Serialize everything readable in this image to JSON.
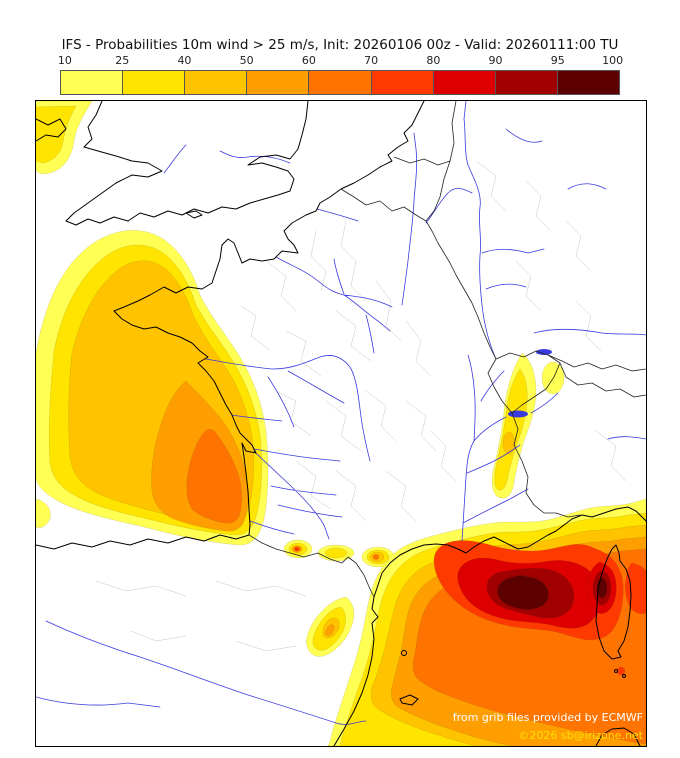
{
  "title": "IFS - Probabilities 10m wind > 25 m/s, Init: 20260106 00z - Valid: 20260111:00 TU",
  "colorbar": {
    "tick_labels": [
      "10",
      "25",
      "40",
      "50",
      "60",
      "70",
      "80",
      "90",
      "95",
      "100"
    ],
    "segment_colors": [
      "#ffff54",
      "#ffe400",
      "#ffc300",
      "#ff9e00",
      "#ff7300",
      "#ff3a00",
      "#de0000",
      "#a00000",
      "#5c0000"
    ]
  },
  "map": {
    "credit_line1": "from grib files provided by ECMWF",
    "credit_line2": "©2026 sb@irizone.net",
    "high_probability_areas": [
      {
        "area": "Gulf of Lion / Mediterranean south of France",
        "max_band": "95-100"
      },
      {
        "area": "Corsica and surrounding sea",
        "max_band": "95-100"
      },
      {
        "area": "Bay of Biscay / Atlantic off western France",
        "max_band": "60-70"
      },
      {
        "area": "Pyrenees",
        "max_band": "70-80"
      },
      {
        "area": "Cevennes / southern Massif Central",
        "max_band": "50-60"
      },
      {
        "area": "Alps / eastern France",
        "max_band": "40-50"
      },
      {
        "area": "Northwest corner (Irish Sea)",
        "max_band": "25-40"
      }
    ]
  }
}
